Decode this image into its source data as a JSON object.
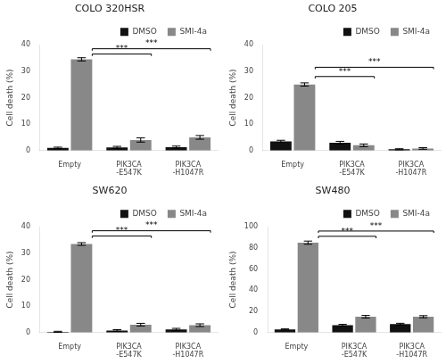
{
  "chart_data": [
    {
      "type": "bar",
      "title": "COLO 320HSR",
      "y_label": "Cell death (%)",
      "categories": [
        "Empty",
        "PIK3CA\n-E547K",
        "PIK3CA\n-H1047R"
      ],
      "series": [
        {
          "name": "DMSO",
          "color": "#111111",
          "values": [
            1.0,
            1.2,
            1.3
          ],
          "errors": [
            0.3,
            0.4,
            0.4
          ]
        },
        {
          "name": "SMI-4a",
          "color": "#888888",
          "values": [
            34.5,
            4.0,
            5.0
          ],
          "errors": [
            0.6,
            0.8,
            0.7
          ]
        }
      ],
      "ylim": [
        0,
        40
      ],
      "yticks": [
        0,
        10,
        20,
        30,
        40
      ],
      "grid": false,
      "legend": "upper right",
      "brackets": [
        {
          "from": "Empty",
          "to": "PIK3CA\n-E547K",
          "y": 36.5,
          "label": "***"
        },
        {
          "from": "Empty",
          "to": "PIK3CA\n-H1047R",
          "y": 38.5,
          "label": "***"
        }
      ]
    },
    {
      "type": "bar",
      "title": "COLO 205",
      "y_label": "Cell death (%)",
      "categories": [
        "Empty",
        "PIK3CA\n-E547K",
        "PIK3CA\n-H1047R"
      ],
      "series": [
        {
          "name": "DMSO",
          "color": "#111111",
          "values": [
            3.5,
            3.0,
            0.5
          ],
          "errors": [
            0.4,
            0.5,
            0.2
          ]
        },
        {
          "name": "SMI-4a",
          "color": "#888888",
          "values": [
            25.0,
            2.0,
            0.8
          ],
          "errors": [
            0.6,
            0.5,
            0.3
          ]
        }
      ],
      "ylim": [
        0,
        40
      ],
      "yticks": [
        0,
        10,
        20,
        30,
        40
      ],
      "grid": false,
      "legend": "upper right",
      "brackets": [
        {
          "from": "Empty",
          "to": "PIK3CA\n-E547K",
          "y": 28.0,
          "label": "***"
        },
        {
          "from": "Empty",
          "to": "PIK3CA\n-H1047R",
          "y": 31.5,
          "label": "***"
        }
      ]
    },
    {
      "type": "bar",
      "title": "SW620",
      "y_label": "Cell death (%)",
      "categories": [
        "Empty",
        "PIK3CA\n-E547K",
        "PIK3CA\n-H1047R"
      ],
      "series": [
        {
          "name": "DMSO",
          "color": "#111111",
          "values": [
            0.3,
            0.8,
            1.2
          ],
          "errors": [
            0.2,
            0.3,
            0.4
          ]
        },
        {
          "name": "SMI-4a",
          "color": "#888888",
          "values": [
            33.5,
            3.0,
            2.8
          ],
          "errors": [
            0.5,
            0.5,
            0.5
          ]
        }
      ],
      "ylim": [
        0,
        40
      ],
      "yticks": [
        0,
        10,
        20,
        30,
        40
      ],
      "grid": false,
      "legend": "upper right",
      "brackets": [
        {
          "from": "Empty",
          "to": "PIK3CA\n-E547K",
          "y": 36.5,
          "label": "***"
        },
        {
          "from": "Empty",
          "to": "PIK3CA\n-H1047R",
          "y": 38.5,
          "label": "***"
        }
      ]
    },
    {
      "type": "bar",
      "title": "SW480",
      "y_label": "Cell death (%)",
      "categories": [
        "Empty",
        "PIK3CA\n-E547K",
        "PIK3CA\n-H1047R"
      ],
      "series": [
        {
          "name": "DMSO",
          "color": "#111111",
          "values": [
            3.0,
            7.0,
            8.0
          ],
          "errors": [
            0.5,
            0.8,
            0.8
          ]
        },
        {
          "name": "SMI-4a",
          "color": "#888888",
          "values": [
            85.0,
            15.0,
            15.0
          ],
          "errors": [
            1.5,
            1.2,
            1.0
          ]
        }
      ],
      "ylim": [
        0,
        100
      ],
      "yticks": [
        0,
        20,
        40,
        60,
        80,
        100
      ],
      "grid": false,
      "legend": "upper right",
      "brackets": [
        {
          "from": "Empty",
          "to": "PIK3CA\n-E547K",
          "y": 91,
          "label": "***"
        },
        {
          "from": "Empty",
          "to": "PIK3CA\n-H1047R",
          "y": 96,
          "label": "***"
        }
      ]
    }
  ]
}
